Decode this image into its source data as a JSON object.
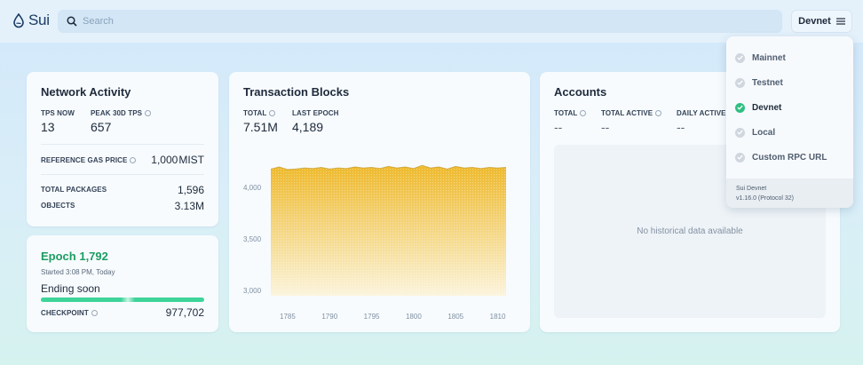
{
  "header": {
    "logo_text": "Sui",
    "search_placeholder": "Search",
    "network_button": "Devnet"
  },
  "network_activity": {
    "title": "Network Activity",
    "tps_now_label": "TPS NOW",
    "tps_now_value": "13",
    "peak_label": "PEAK 30D TPS",
    "peak_value": "657",
    "gas_label": "REFERENCE GAS PRICE",
    "gas_value": "1,000",
    "gas_unit": "MIST",
    "packages_label": "TOTAL PACKAGES",
    "packages_value": "1,596",
    "objects_label": "OBJECTS",
    "objects_value": "3.13M"
  },
  "epoch": {
    "title": "Epoch 1,792",
    "started": "Started 3:08 PM, Today",
    "status": "Ending soon",
    "progress": 0.7,
    "checkpoint_label": "CHECKPOINT",
    "checkpoint_value": "977,702",
    "accent": "#1d9d62",
    "bar_color": "#3ed49a"
  },
  "transaction_blocks": {
    "title": "Transaction Blocks",
    "total_label": "TOTAL",
    "total_value": "7.51M",
    "last_epoch_label": "LAST EPOCH",
    "last_epoch_value": "4,189"
  },
  "accounts": {
    "title": "Accounts",
    "total_label": "TOTAL",
    "total_value": "--",
    "active_label": "TOTAL ACTIVE",
    "active_value": "--",
    "daily_label": "DAILY ACTIVE",
    "daily_value": "--",
    "empty_text": "No historical data available"
  },
  "network_menu": {
    "items": [
      {
        "label": "Mainnet",
        "selected": false
      },
      {
        "label": "Testnet",
        "selected": false
      },
      {
        "label": "Devnet",
        "selected": true
      },
      {
        "label": "Local",
        "selected": false
      },
      {
        "label": "Custom RPC URL",
        "selected": false
      }
    ],
    "footer_name": "Sui Devnet",
    "footer_version": "v1.16.0 (Protocol 32)"
  },
  "chart_data": {
    "type": "area",
    "x": [
      1783,
      1784,
      1785,
      1786,
      1787,
      1788,
      1789,
      1790,
      1791,
      1792,
      1793,
      1794,
      1795,
      1796,
      1797,
      1798,
      1799,
      1800,
      1801,
      1802,
      1803,
      1804,
      1805,
      1806,
      1807,
      1808,
      1809,
      1810,
      1811
    ],
    "values": [
      4180,
      4200,
      4175,
      4180,
      4190,
      4185,
      4195,
      4180,
      4190,
      4185,
      4200,
      4190,
      4195,
      4185,
      4205,
      4190,
      4200,
      4185,
      4215,
      4190,
      4200,
      4180,
      4205,
      4190,
      4195,
      4185,
      4195,
      4190,
      4195
    ],
    "x_ticks": [
      "1785",
      "1790",
      "1795",
      "1800",
      "1805",
      "1810"
    ],
    "y_ticks": [
      "4,000",
      "3,500",
      "3,000"
    ],
    "ylim": [
      2950,
      4260
    ],
    "colors": {
      "top": "#eeb92b",
      "bottom": "#fbf4dc",
      "line": "#b8860b"
    }
  }
}
